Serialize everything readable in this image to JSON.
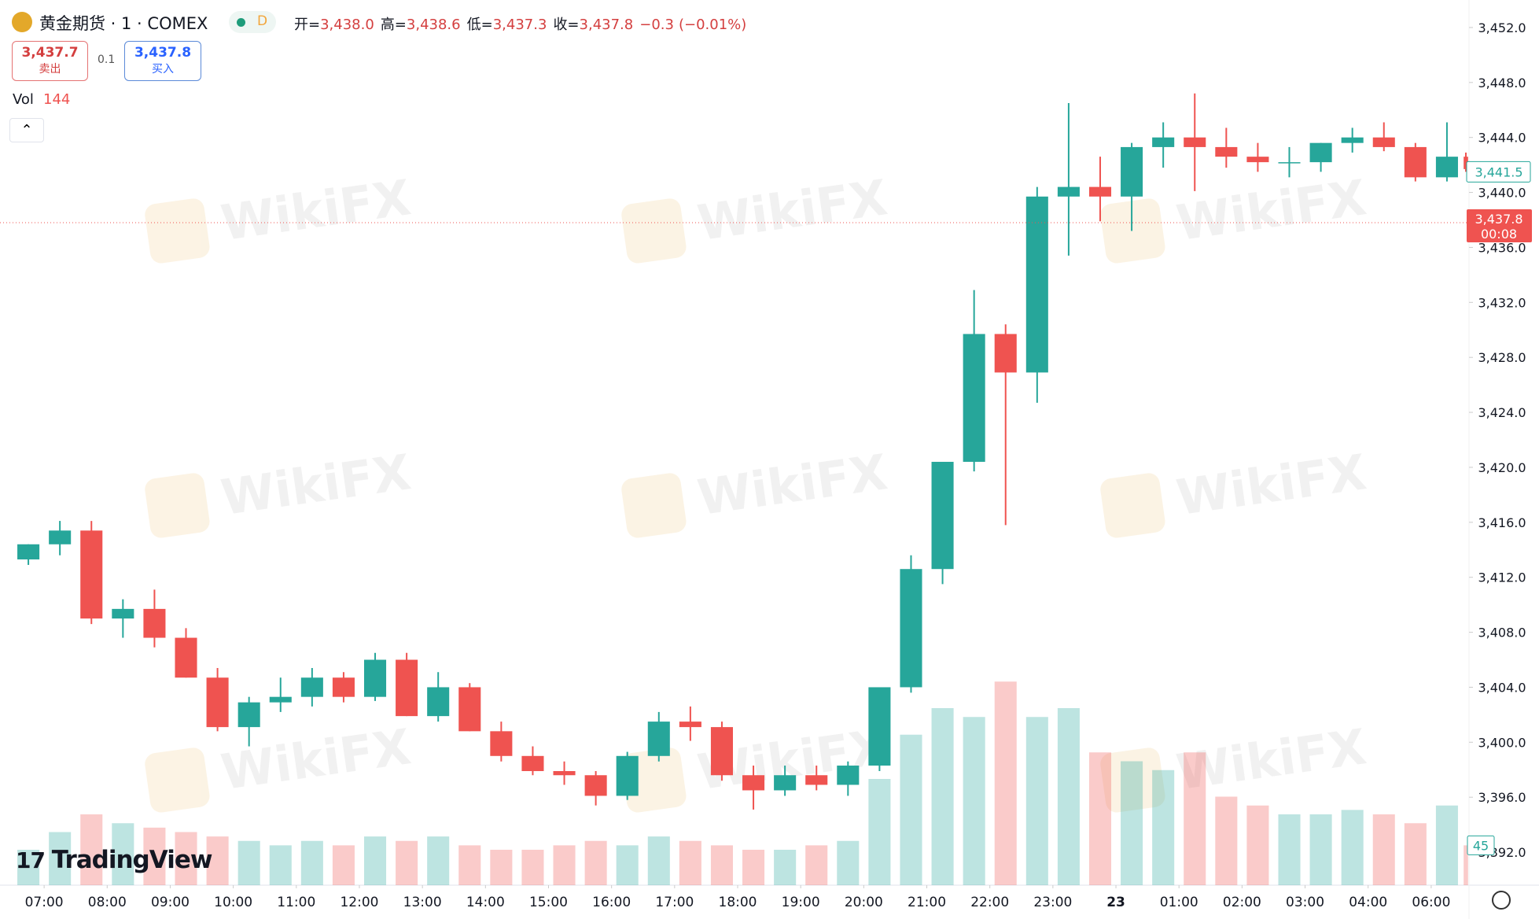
{
  "header": {
    "symbol": "黄金期货 · 1 · COMEX",
    "interval": "D",
    "ohlc": [
      {
        "label": "开=",
        "value": "3,438.0"
      },
      {
        "label": "高=",
        "value": "3,438.6"
      },
      {
        "label": "低=",
        "value": "3,437.3"
      },
      {
        "label": "收=",
        "value": "3,437.8"
      }
    ],
    "change": "−0.3",
    "change_pct": "(−0.01%)",
    "sell": {
      "price": "3,437.7",
      "label": "卖出"
    },
    "spread": "0.1",
    "buy": {
      "price": "3,437.8",
      "label": "买入"
    },
    "vol_label": "Vol",
    "vol_value": "144"
  },
  "logo": "TradingView",
  "watermark": "WikiFX",
  "chart_data": {
    "type": "candlestick",
    "up_color": "#26a69a",
    "down_color": "#ef5350",
    "x": [
      6.5,
      7,
      7.5,
      8,
      8.5,
      9,
      9.5,
      10,
      10.5,
      11,
      11.5,
      12,
      12.5,
      13,
      13.5,
      14,
      14.5,
      15,
      15.5,
      16,
      16.5,
      17,
      17.5,
      18,
      18.5,
      19,
      19.5,
      20,
      20.5,
      21,
      21.5,
      22,
      22.5,
      23,
      23.5,
      24,
      24.5,
      25,
      25.5,
      26,
      26.5,
      27,
      27.5,
      28,
      28.5,
      30,
      30.5
    ],
    "open": [
      3413.3,
      3414.4,
      3415.4,
      3409.0,
      3409.7,
      3407.6,
      3404.7,
      3401.1,
      3402.9,
      3403.3,
      3404.7,
      3403.3,
      3406.0,
      3401.9,
      3404.0,
      3400.8,
      3399.0,
      3397.9,
      3397.6,
      3396.1,
      3399.0,
      3401.5,
      3401.1,
      3397.6,
      3396.5,
      3397.6,
      3396.9,
      3398.3,
      3404.0,
      3412.6,
      3420.4,
      3429.7,
      3426.9,
      3439.7,
      3440.4,
      3439.7,
      3443.3,
      3444.0,
      3443.3,
      3442.6,
      3442.2,
      3442.2,
      3443.6,
      3444.0,
      3443.3,
      3441.1,
      3442.6
    ],
    "high": [
      3414.4,
      3416.1,
      3416.1,
      3410.4,
      3411.1,
      3408.3,
      3405.4,
      3403.3,
      3404.7,
      3405.4,
      3405.1,
      3406.5,
      3406.5,
      3405.1,
      3404.3,
      3401.5,
      3399.7,
      3398.6,
      3397.9,
      3399.3,
      3402.2,
      3402.6,
      3401.5,
      3398.3,
      3398.3,
      3398.3,
      3398.6,
      3404.0,
      3413.6,
      3420.4,
      3432.9,
      3430.4,
      3440.4,
      3446.5,
      3442.6,
      3443.6,
      3445.1,
      3447.2,
      3444.7,
      3443.6,
      3443.3,
      3443.6,
      3444.7,
      3445.1,
      3443.6,
      3445.1,
      3442.9
    ],
    "low": [
      3412.9,
      3413.6,
      3408.6,
      3407.6,
      3406.9,
      3404.7,
      3400.8,
      3399.7,
      3402.2,
      3402.6,
      3402.9,
      3403.0,
      3401.9,
      3401.5,
      3400.8,
      3398.6,
      3397.6,
      3396.9,
      3395.4,
      3395.8,
      3398.6,
      3400.1,
      3397.2,
      3395.1,
      3396.1,
      3396.5,
      3396.1,
      3397.9,
      3403.6,
      3411.5,
      3419.7,
      3415.8,
      3424.7,
      3435.4,
      3437.9,
      3437.2,
      3441.8,
      3440.1,
      3441.8,
      3441.5,
      3441.1,
      3441.5,
      3442.9,
      3443.0,
      3440.8,
      3440.8,
      3441.5
    ],
    "close": [
      3414.4,
      3415.4,
      3409.0,
      3409.7,
      3407.6,
      3404.7,
      3401.1,
      3402.9,
      3403.3,
      3404.7,
      3403.3,
      3406.0,
      3401.9,
      3404.0,
      3400.8,
      3399.0,
      3397.9,
      3397.6,
      3396.1,
      3399.0,
      3401.5,
      3401.1,
      3397.6,
      3396.5,
      3397.6,
      3396.9,
      3398.3,
      3404.0,
      3412.6,
      3420.4,
      3429.7,
      3426.9,
      3439.7,
      3440.4,
      3439.7,
      3443.3,
      3444.0,
      3443.3,
      3442.6,
      3442.2,
      3442.2,
      3443.6,
      3444.0,
      3443.3,
      3441.1,
      3442.6,
      3441.7
    ],
    "volume": [
      40,
      60,
      80,
      70,
      65,
      60,
      55,
      50,
      45,
      50,
      45,
      55,
      50,
      55,
      45,
      40,
      40,
      45,
      50,
      45,
      55,
      50,
      45,
      40,
      40,
      45,
      50,
      120,
      170,
      200,
      190,
      230,
      190,
      200,
      150,
      140,
      130,
      150,
      100,
      90,
      80,
      80,
      85,
      80,
      70,
      90,
      45
    ],
    "xlim": [
      6.3,
      30.6
    ],
    "breaks": [
      [
        29,
        30
      ]
    ],
    "xticks": [
      {
        "value": 7,
        "label": "07:00"
      },
      {
        "value": 8,
        "label": "08:00"
      },
      {
        "value": 9,
        "label": "09:00"
      },
      {
        "value": 10,
        "label": "10:00"
      },
      {
        "value": 11,
        "label": "11:00"
      },
      {
        "value": 12,
        "label": "12:00"
      },
      {
        "value": 13,
        "label": "13:00"
      },
      {
        "value": 14,
        "label": "14:00"
      },
      {
        "value": 15,
        "label": "15:00"
      },
      {
        "value": 16,
        "label": "16:00"
      },
      {
        "value": 17,
        "label": "17:00"
      },
      {
        "value": 18,
        "label": "18:00"
      },
      {
        "value": 19,
        "label": "19:00"
      },
      {
        "value": 20,
        "label": "20:00"
      },
      {
        "value": 21,
        "label": "21:00"
      },
      {
        "value": 22,
        "label": "22:00"
      },
      {
        "value": 23,
        "label": "23:00"
      },
      {
        "value": 24,
        "label": "23"
      },
      {
        "value": 25,
        "label": "01:00"
      },
      {
        "value": 26,
        "label": "02:00"
      },
      {
        "value": 27,
        "label": "03:00"
      },
      {
        "value": 28,
        "label": "04:00"
      },
      {
        "value": 30,
        "label": "06:00"
      }
    ],
    "ylim": [
      3389.6,
      3454
    ],
    "yticks": [
      {
        "value": 3392,
        "label": "3,392.0"
      },
      {
        "value": 3396,
        "label": "3,396.0"
      },
      {
        "value": 3400,
        "label": "3,400.0"
      },
      {
        "value": 3404,
        "label": "3,404.0"
      },
      {
        "value": 3408,
        "label": "3,408.0"
      },
      {
        "value": 3412,
        "label": "3,412.0"
      },
      {
        "value": 3416,
        "label": "3,416.0"
      },
      {
        "value": 3420,
        "label": "3,420.0"
      },
      {
        "value": 3424,
        "label": "3,424.0"
      },
      {
        "value": 3428,
        "label": "3,428.0"
      },
      {
        "value": 3432,
        "label": "3,432.0"
      },
      {
        "value": 3436,
        "label": "3,436.0"
      },
      {
        "value": 3440,
        "label": "3,440.0"
      },
      {
        "value": 3444,
        "label": "3,444.0"
      },
      {
        "value": 3448,
        "label": "3,448.0"
      },
      {
        "value": 3452,
        "label": "3,452.0"
      }
    ],
    "y2lim": [
      0,
      1000
    ],
    "last_price": {
      "value": 3437.8,
      "label": "3,437.8"
    },
    "countdown": "00:08",
    "marker_price": {
      "value": 3441.5,
      "label": "3,441.5"
    },
    "volume_last": 45,
    "grid": false
  }
}
